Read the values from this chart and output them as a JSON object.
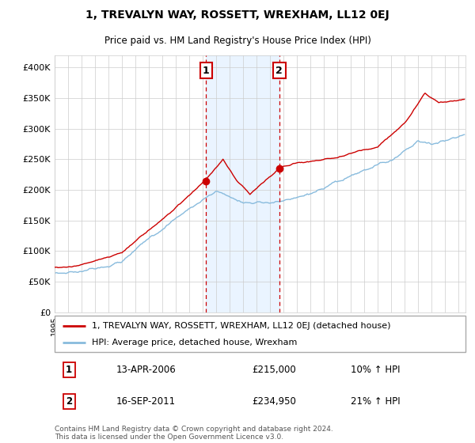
{
  "title": "1, TREVALYN WAY, ROSSETT, WREXHAM, LL12 0EJ",
  "subtitle": "Price paid vs. HM Land Registry's House Price Index (HPI)",
  "ylim": [
    0,
    420000
  ],
  "yticks": [
    0,
    50000,
    100000,
    150000,
    200000,
    250000,
    300000,
    350000,
    400000
  ],
  "ytick_labels": [
    "£0",
    "£50K",
    "£100K",
    "£150K",
    "£200K",
    "£250K",
    "£300K",
    "£350K",
    "£400K"
  ],
  "xlim_start": 1995,
  "xlim_end": 2025.5,
  "sale1_date": 2006.25,
  "sale1_price": 215000,
  "sale2_date": 2011.67,
  "sale2_price": 234950,
  "sale1_display": "13-APR-2006",
  "sale1_price_display": "£215,000",
  "sale1_hpi": "10% ↑ HPI",
  "sale2_display": "16-SEP-2011",
  "sale2_price_display": "£234,950",
  "sale2_hpi": "21% ↑ HPI",
  "legend_line1": "1, TREVALYN WAY, ROSSETT, WREXHAM, LL12 0EJ (detached house)",
  "legend_line2": "HPI: Average price, detached house, Wrexham",
  "footnote1": "Contains HM Land Registry data © Crown copyright and database right 2024.",
  "footnote2": "This data is licensed under the Open Government Licence v3.0.",
  "line_color_red": "#cc0000",
  "line_color_blue": "#88bbdd",
  "shade_color": "#ddeeff",
  "grid_color": "#cccccc",
  "marker_box_color": "#cc0000",
  "bg_color": "#ffffff"
}
